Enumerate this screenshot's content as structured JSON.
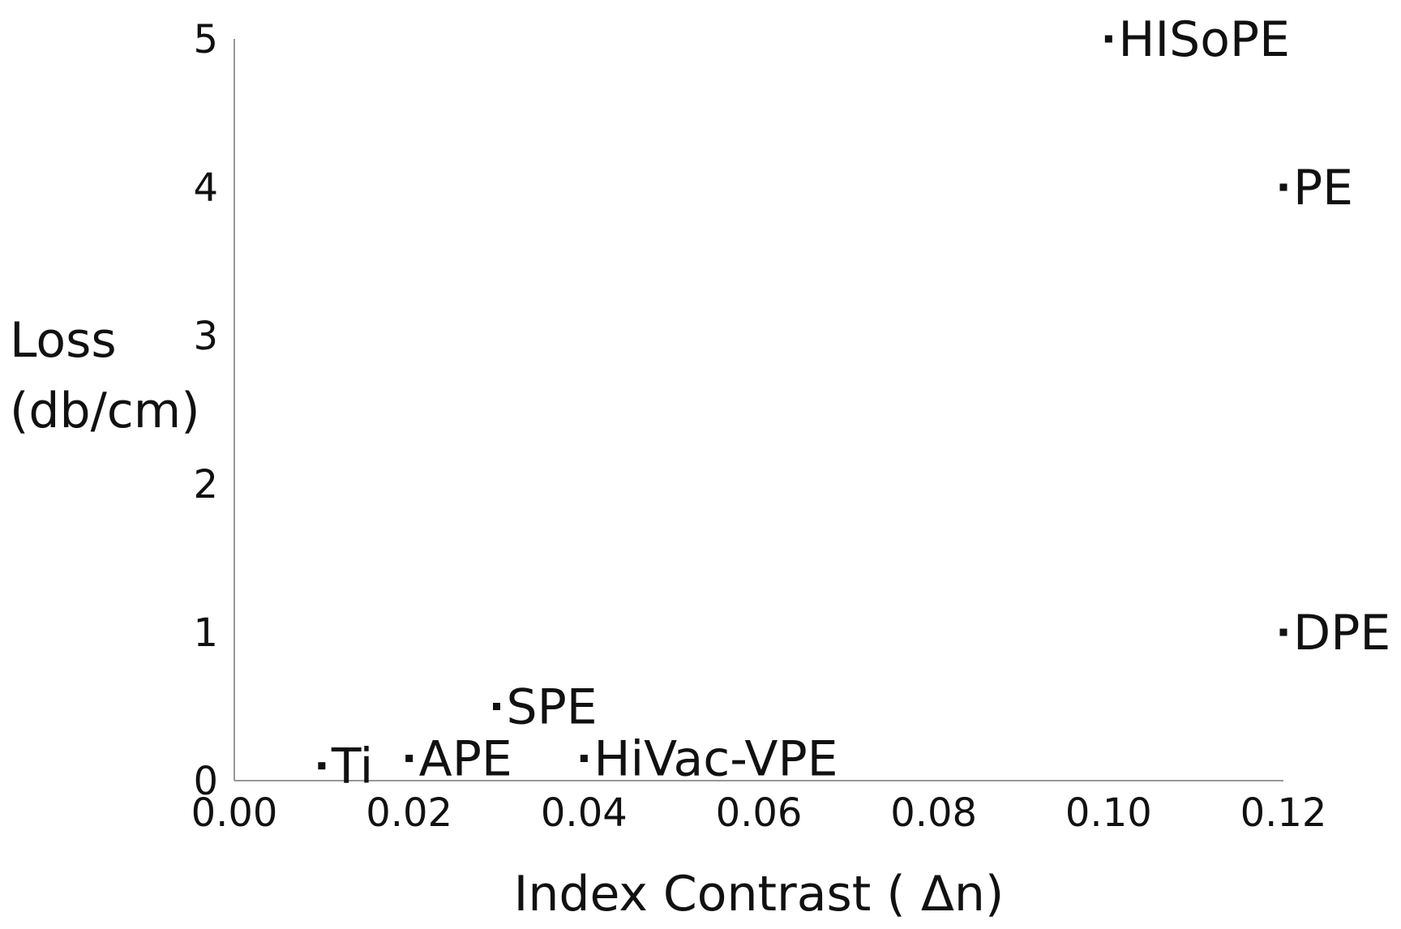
{
  "chart_data": {
    "type": "scatter",
    "title": "",
    "xlabel": "Index Contrast ( Δn)",
    "ylabel_lines": [
      "Loss",
      "(db/cm)"
    ],
    "xlim": [
      0,
      0.12
    ],
    "ylim": [
      0,
      5
    ],
    "x_ticks": [
      0,
      0.02,
      0.04,
      0.06,
      0.08,
      0.1,
      0.12
    ],
    "x_tick_labels": [
      "0.00",
      "0.02",
      "0.04",
      "0.06",
      "0.08",
      "0.10",
      "0.12"
    ],
    "y_ticks": [
      0,
      1,
      2,
      3,
      4,
      5
    ],
    "y_tick_labels": [
      "0",
      "1",
      "2",
      "3",
      "4",
      "5"
    ],
    "grid": false,
    "legend": "none",
    "points": [
      {
        "label": "Ti",
        "x": 0.01,
        "y": 0.1
      },
      {
        "label": "APE",
        "x": 0.02,
        "y": 0.15
      },
      {
        "label": "SPE",
        "x": 0.03,
        "y": 0.5
      },
      {
        "label": "HiVac-VPE",
        "x": 0.04,
        "y": 0.15
      },
      {
        "label": "HISoPE",
        "x": 0.1,
        "y": 5
      },
      {
        "label": "PE",
        "x": 0.12,
        "y": 4
      },
      {
        "label": "DPE",
        "x": 0.12,
        "y": 1
      }
    ],
    "marker_color": "#111111",
    "axis_color": "#999999"
  }
}
